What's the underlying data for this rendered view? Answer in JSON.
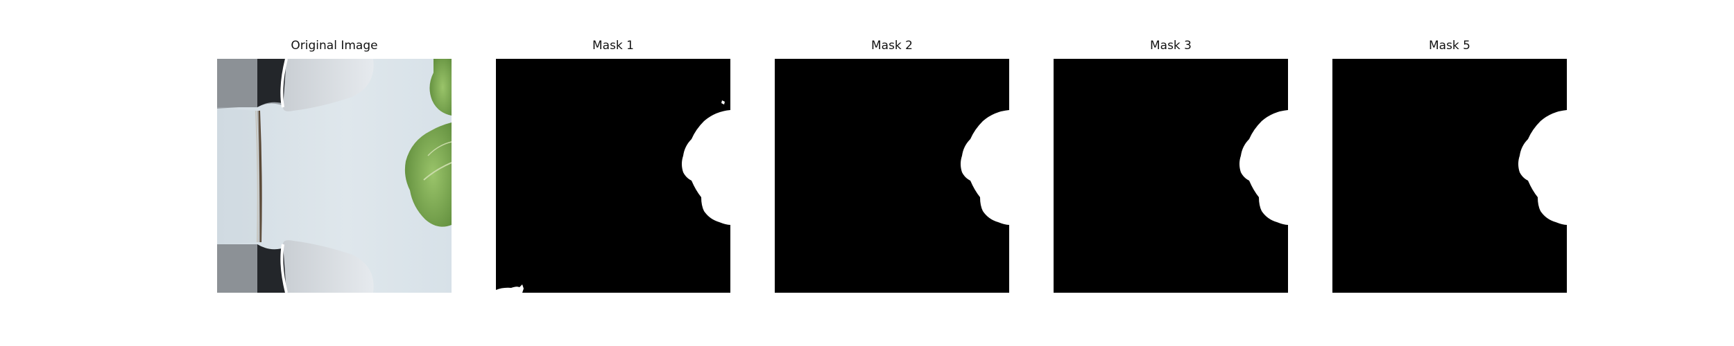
{
  "figure": {
    "panels": [
      {
        "title": "Original Image",
        "kind": "photo"
      },
      {
        "title": "Mask 1",
        "kind": "mask",
        "has_edge_specks": true
      },
      {
        "title": "Mask 2",
        "kind": "mask",
        "has_edge_specks": false
      },
      {
        "title": "Mask 3",
        "kind": "mask",
        "has_edge_specks": false
      },
      {
        "title": "Mask 5",
        "kind": "mask",
        "has_edge_specks": false
      }
    ]
  },
  "colors": {
    "mask_background": "#000000",
    "mask_foreground": "#ffffff",
    "photo_surface": "#dbe4ea",
    "photo_dark": "#2a2d31",
    "leaf_green": "#7aa34e"
  }
}
